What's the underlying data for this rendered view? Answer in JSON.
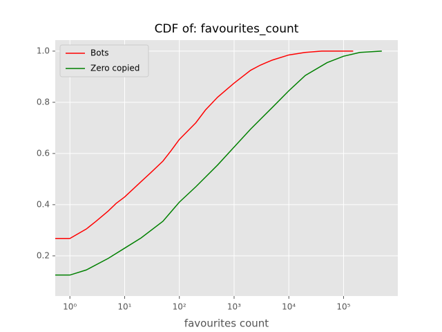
{
  "chart_data": {
    "type": "line",
    "title": "CDF of: favourites_count",
    "x_label": "favourites count",
    "x_scale": "log",
    "grid": true,
    "legend": "upper left",
    "xlim": [
      0.54,
      980000
    ],
    "ylim": [
      0.043,
      1.043
    ],
    "xticks": [
      {
        "value": 1,
        "label": "10⁰"
      },
      {
        "value": 10,
        "label": "10¹"
      },
      {
        "value": 100,
        "label": "10²"
      },
      {
        "value": 1000,
        "label": "10³"
      },
      {
        "value": 10000,
        "label": "10⁴"
      },
      {
        "value": 100000,
        "label": "10⁵"
      }
    ],
    "yticks": [
      0.2,
      0.4,
      0.6,
      0.8,
      {
        "value": 1,
        "label": "1.0"
      }
    ],
    "series": [
      {
        "name": "Bots",
        "color": "#ff0000",
        "x": [
          0.5,
          1,
          2,
          3,
          5,
          7,
          10,
          20,
          30,
          50,
          70,
          100,
          200,
          300,
          500,
          1000,
          2000,
          3000,
          5000,
          10000,
          20000,
          40000,
          150000
        ],
        "values": [
          0.268,
          0.268,
          0.305,
          0.335,
          0.375,
          0.405,
          0.43,
          0.49,
          0.525,
          0.57,
          0.61,
          0.655,
          0.72,
          0.77,
          0.82,
          0.875,
          0.925,
          0.945,
          0.965,
          0.985,
          0.995,
          1.0,
          1.0
        ]
      },
      {
        "name": "Zero copied",
        "color": "#008000",
        "x": [
          0.5,
          1,
          2,
          5,
          10,
          20,
          50,
          100,
          200,
          500,
          1000,
          2000,
          5000,
          10000,
          20000,
          50000,
          100000,
          200000,
          500000
        ],
        "values": [
          0.125,
          0.125,
          0.145,
          0.19,
          0.23,
          0.27,
          0.335,
          0.41,
          0.47,
          0.555,
          0.625,
          0.695,
          0.78,
          0.845,
          0.905,
          0.955,
          0.98,
          0.995,
          1.0
        ]
      }
    ]
  }
}
